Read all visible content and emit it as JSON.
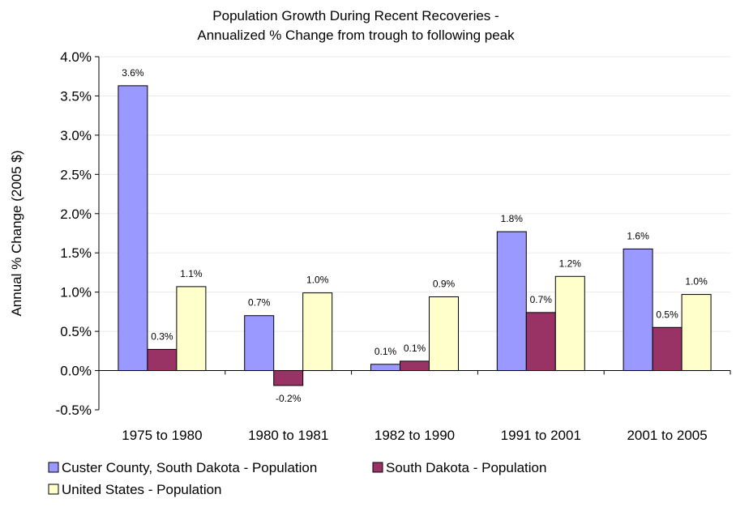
{
  "chart_data": {
    "type": "bar",
    "title_lines": [
      "Population Growth During Recent Recoveries -",
      "Annualized % Change from trough to following peak"
    ],
    "ylabel": "Annual % Change (2005 $)",
    "xlabel": "",
    "categories": [
      "1975 to 1980",
      "1980 to 1981",
      "1982 to 1990",
      "1991 to 2001",
      "2001 to 2005"
    ],
    "ylim": [
      -0.5,
      4.0
    ],
    "yticks": [
      -0.5,
      0.0,
      0.5,
      1.0,
      1.5,
      2.0,
      2.5,
      3.0,
      3.5,
      4.0
    ],
    "ytick_labels": [
      "-0.5%",
      "0.0%",
      "0.5%",
      "1.0%",
      "1.5%",
      "2.0%",
      "2.5%",
      "3.0%",
      "3.5%",
      "4.0%"
    ],
    "grid": "horizontal",
    "legend_position": "bottom",
    "series": [
      {
        "name": "Custer County, South Dakota - Population",
        "color": "#9999ff",
        "values": [
          3.63,
          0.7,
          0.08,
          1.77,
          1.55
        ],
        "labels": [
          "3.6%",
          "0.7%",
          "0.1%",
          "1.8%",
          "1.6%"
        ]
      },
      {
        "name": "South Dakota - Population",
        "color": "#993366",
        "values": [
          0.27,
          -0.19,
          0.12,
          0.74,
          0.55
        ],
        "labels": [
          "0.3%",
          "-0.2%",
          "0.1%",
          "0.7%",
          "0.5%"
        ]
      },
      {
        "name": "United States - Population",
        "color": "#ffffcc",
        "values": [
          1.07,
          0.99,
          0.94,
          1.2,
          0.97
        ],
        "labels": [
          "1.1%",
          "1.0%",
          "0.9%",
          "1.2%",
          "1.0%"
        ]
      }
    ]
  }
}
